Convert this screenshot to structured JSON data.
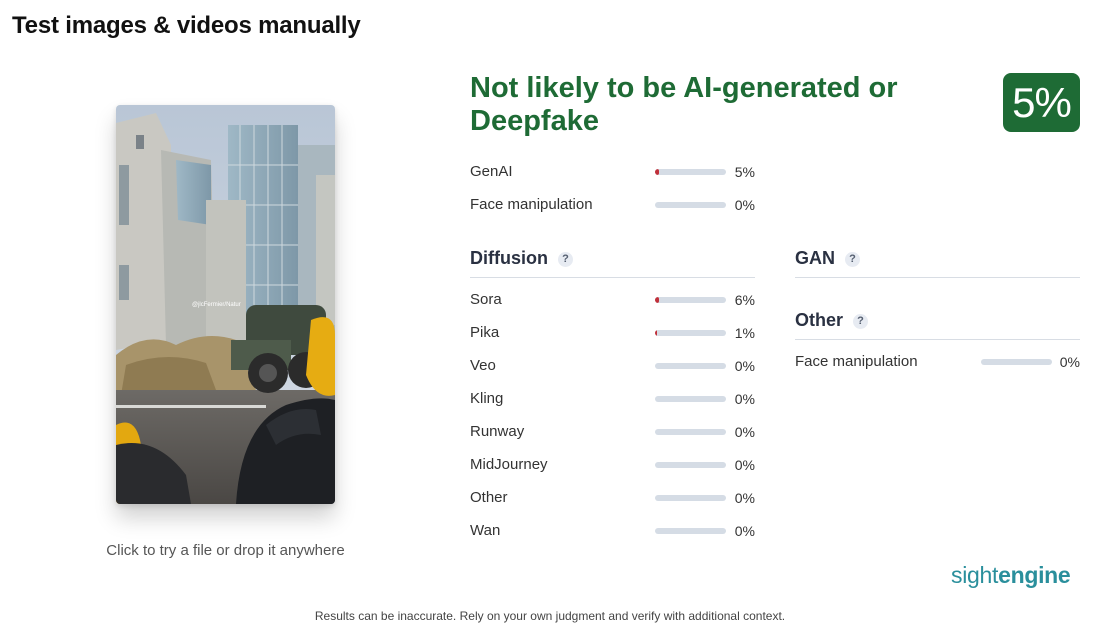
{
  "page": {
    "title": "Test images & videos manually"
  },
  "upload": {
    "hint": "Click to try a file or drop it anywhere",
    "watermark": "@jlcFermier/Natur"
  },
  "result": {
    "verdict": "Not likely to be AI-generated or Deepfake",
    "score": "5%",
    "verdict_color": "#1e6b35"
  },
  "summary": [
    {
      "label": "GenAI",
      "value": "5%",
      "fraction": 0.05
    },
    {
      "label": "Face manipulation",
      "value": "0%",
      "fraction": 0.0
    }
  ],
  "diffusion": {
    "title": "Diffusion",
    "help": "?",
    "items": [
      {
        "label": "Sora",
        "value": "6%",
        "fraction": 0.06
      },
      {
        "label": "Pika",
        "value": "1%",
        "fraction": 0.01
      },
      {
        "label": "Veo",
        "value": "0%",
        "fraction": 0.0
      },
      {
        "label": "Kling",
        "value": "0%",
        "fraction": 0.0
      },
      {
        "label": "Runway",
        "value": "0%",
        "fraction": 0.0
      },
      {
        "label": "MidJourney",
        "value": "0%",
        "fraction": 0.0
      },
      {
        "label": "Other",
        "value": "0%",
        "fraction": 0.0
      },
      {
        "label": "Wan",
        "value": "0%",
        "fraction": 0.0
      }
    ]
  },
  "gan": {
    "title": "GAN",
    "help": "?"
  },
  "other": {
    "title": "Other",
    "help": "?",
    "items": [
      {
        "label": "Face manipulation",
        "value": "0%",
        "fraction": 0.0
      }
    ]
  },
  "brand": {
    "light": "sight",
    "bold": "engine",
    "color": "#2a8f9c"
  },
  "footer": {
    "disclaimer": "Results can be inaccurate. Rely on your own judgment and verify with additional context."
  },
  "colors": {
    "bar_track": "#d5dce5",
    "bar_fill": "#c0303a"
  }
}
